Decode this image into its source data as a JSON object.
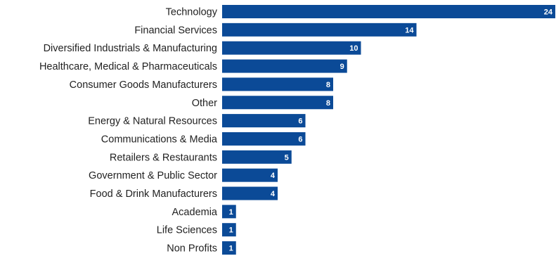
{
  "colors": {
    "bar": "#0b4a97",
    "label": "#222222",
    "value_text": "#ffffff"
  },
  "chart_data": {
    "type": "bar",
    "orientation": "horizontal",
    "categories": [
      "Technology",
      "Financial Services",
      "Diversified Industrials & Manufacturing",
      "Healthcare, Medical & Pharmaceuticals",
      "Consumer Goods Manufacturers",
      "Other",
      "Energy & Natural Resources",
      "Communications & Media",
      "Retailers & Restaurants",
      "Government & Public Sector",
      "Food & Drink Manufacturers",
      "Academia",
      "Life Sciences",
      "Non Profits"
    ],
    "values": [
      24,
      14,
      10,
      9,
      8,
      8,
      6,
      6,
      5,
      4,
      4,
      1,
      1,
      1
    ],
    "title": "",
    "xlabel": "",
    "ylabel": "",
    "xlim": [
      0,
      24
    ],
    "grid": false,
    "legend": "none",
    "data_labels": "inside-end"
  }
}
